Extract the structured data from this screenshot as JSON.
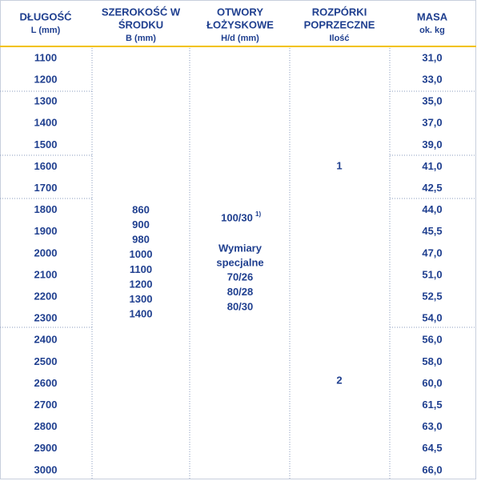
{
  "header": {
    "columns": [
      {
        "title_lines": [
          "DŁUGOŚĆ"
        ],
        "unit": "L (mm)"
      },
      {
        "title_lines": [
          "SZEROKOŚĆ W",
          "ŚRODKU"
        ],
        "unit": "B (mm)"
      },
      {
        "title_lines": [
          "OTWORY",
          "ŁOŻYSKOWE"
        ],
        "unit": "H/d (mm)"
      },
      {
        "title_lines": [
          "ROZPÓRKI",
          "POPRZECZNE"
        ],
        "unit": "Ilość"
      },
      {
        "title_lines": [
          "MASA"
        ],
        "unit": "ok. kg"
      }
    ]
  },
  "table": {
    "lengths": [
      "1100",
      "1200",
      "1300",
      "1400",
      "1500",
      "1600",
      "1700",
      "1800",
      "1900",
      "2000",
      "2100",
      "2200",
      "2300",
      "2400",
      "2500",
      "2600",
      "2700",
      "2800",
      "2900",
      "3000"
    ],
    "masses": [
      "31,0",
      "33,0",
      "35,0",
      "37,0",
      "39,0",
      "41,0",
      "42,5",
      "44,0",
      "45,5",
      "47,0",
      "51,0",
      "52,5",
      "54,0",
      "56,0",
      "58,0",
      "60,0",
      "61,5",
      "63,0",
      "64,5",
      "66,0"
    ],
    "widths": [
      "860",
      "900",
      "980",
      "1000",
      "1100",
      "1200",
      "1300",
      "1400"
    ],
    "holes": {
      "standard": "100/30",
      "footnote": "1)",
      "special_lines": [
        "Wymiary",
        "specjalne"
      ],
      "special_sizes": [
        "70/26",
        "80/28",
        "80/30"
      ]
    },
    "spacers": [
      "1",
      "2"
    ]
  }
}
